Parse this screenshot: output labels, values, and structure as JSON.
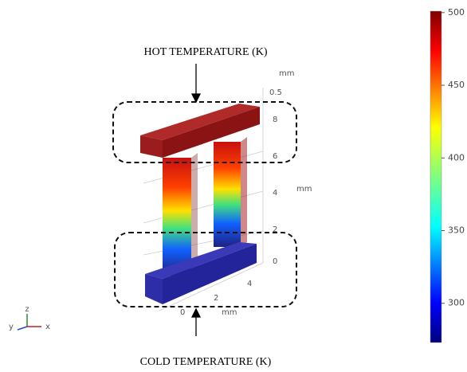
{
  "labels": {
    "hot": "HOT TEMPERATURE  (K)",
    "cold": "COLD TEMPERATURE  (K)"
  },
  "colorbar": {
    "range": [
      273,
      501
    ],
    "ticks": [
      300,
      350,
      400,
      450,
      500
    ]
  },
  "axes": {
    "top_unit": "mm",
    "top_tick": "0.5",
    "z_ticks": [
      "8",
      "6",
      "4",
      "2",
      "0"
    ],
    "z_unit": "mm",
    "x_ticks": [
      "4",
      "2",
      "0"
    ],
    "x_unit": "mm"
  },
  "triad": {
    "z": "z",
    "y": "y",
    "x": "x"
  }
}
